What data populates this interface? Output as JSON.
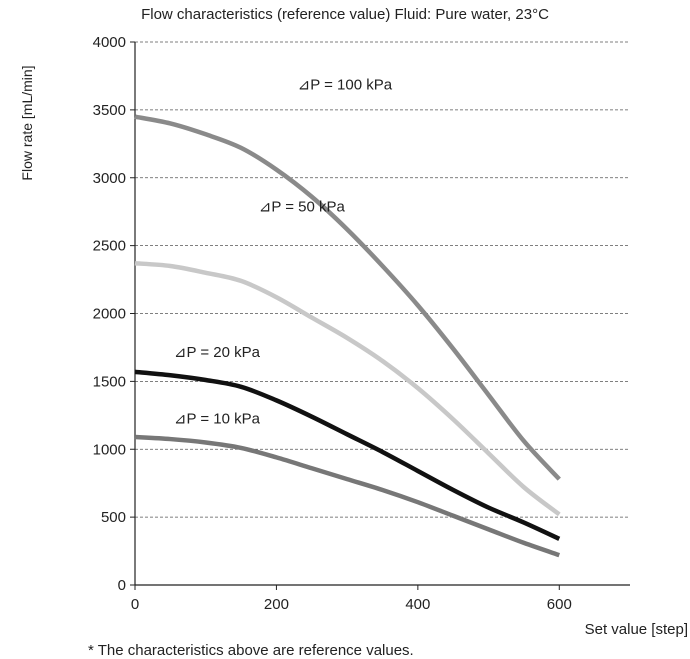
{
  "chart_data": {
    "type": "line",
    "title": "Flow characteristics (reference value) Fluid: Pure water, 23°C",
    "xlabel": "Set value [step]",
    "ylabel": "Flow rate [mL/min]",
    "xlim": [
      0,
      700
    ],
    "ylim": [
      0,
      4000
    ],
    "x_ticks": [
      0,
      200,
      400,
      600
    ],
    "y_ticks": [
      0,
      500,
      1000,
      1500,
      2000,
      2500,
      3000,
      3500,
      4000
    ],
    "grid": "horizontal dashed",
    "series": [
      {
        "name": "⊿P = 100 kPa",
        "color": "#8a8a8a",
        "x": [
          0,
          50,
          100,
          150,
          200,
          250,
          300,
          350,
          400,
          450,
          500,
          550,
          600
        ],
        "y": [
          3450,
          3400,
          3320,
          3220,
          3060,
          2860,
          2620,
          2350,
          2060,
          1740,
          1400,
          1060,
          780
        ]
      },
      {
        "name": "⊿P = 50 kPa",
        "color": "#c8c8c8",
        "x": [
          0,
          50,
          100,
          150,
          200,
          250,
          300,
          350,
          400,
          450,
          500,
          550,
          600
        ],
        "y": [
          2370,
          2350,
          2300,
          2240,
          2120,
          1970,
          1820,
          1650,
          1450,
          1220,
          970,
          720,
          520
        ]
      },
      {
        "name": "⊿P = 20 kPa",
        "color": "#111111",
        "x": [
          0,
          50,
          100,
          150,
          200,
          250,
          300,
          350,
          400,
          450,
          500,
          550,
          600
        ],
        "y": [
          1570,
          1545,
          1510,
          1460,
          1360,
          1240,
          1110,
          980,
          840,
          700,
          570,
          460,
          340
        ]
      },
      {
        "name": "⊿P = 10 kPa",
        "color": "#777777",
        "x": [
          0,
          50,
          100,
          150,
          200,
          250,
          300,
          350,
          400,
          450,
          500,
          550,
          600
        ],
        "y": [
          1090,
          1075,
          1050,
          1010,
          940,
          860,
          780,
          700,
          610,
          510,
          410,
          310,
          220
        ]
      }
    ],
    "annotations": [
      "⊿P = 100 kPa",
      "⊿P = 50 kPa",
      "⊿P = 20 kPa",
      "⊿P = 10 kPa"
    ],
    "footnote": "* The characteristics above are reference values."
  }
}
